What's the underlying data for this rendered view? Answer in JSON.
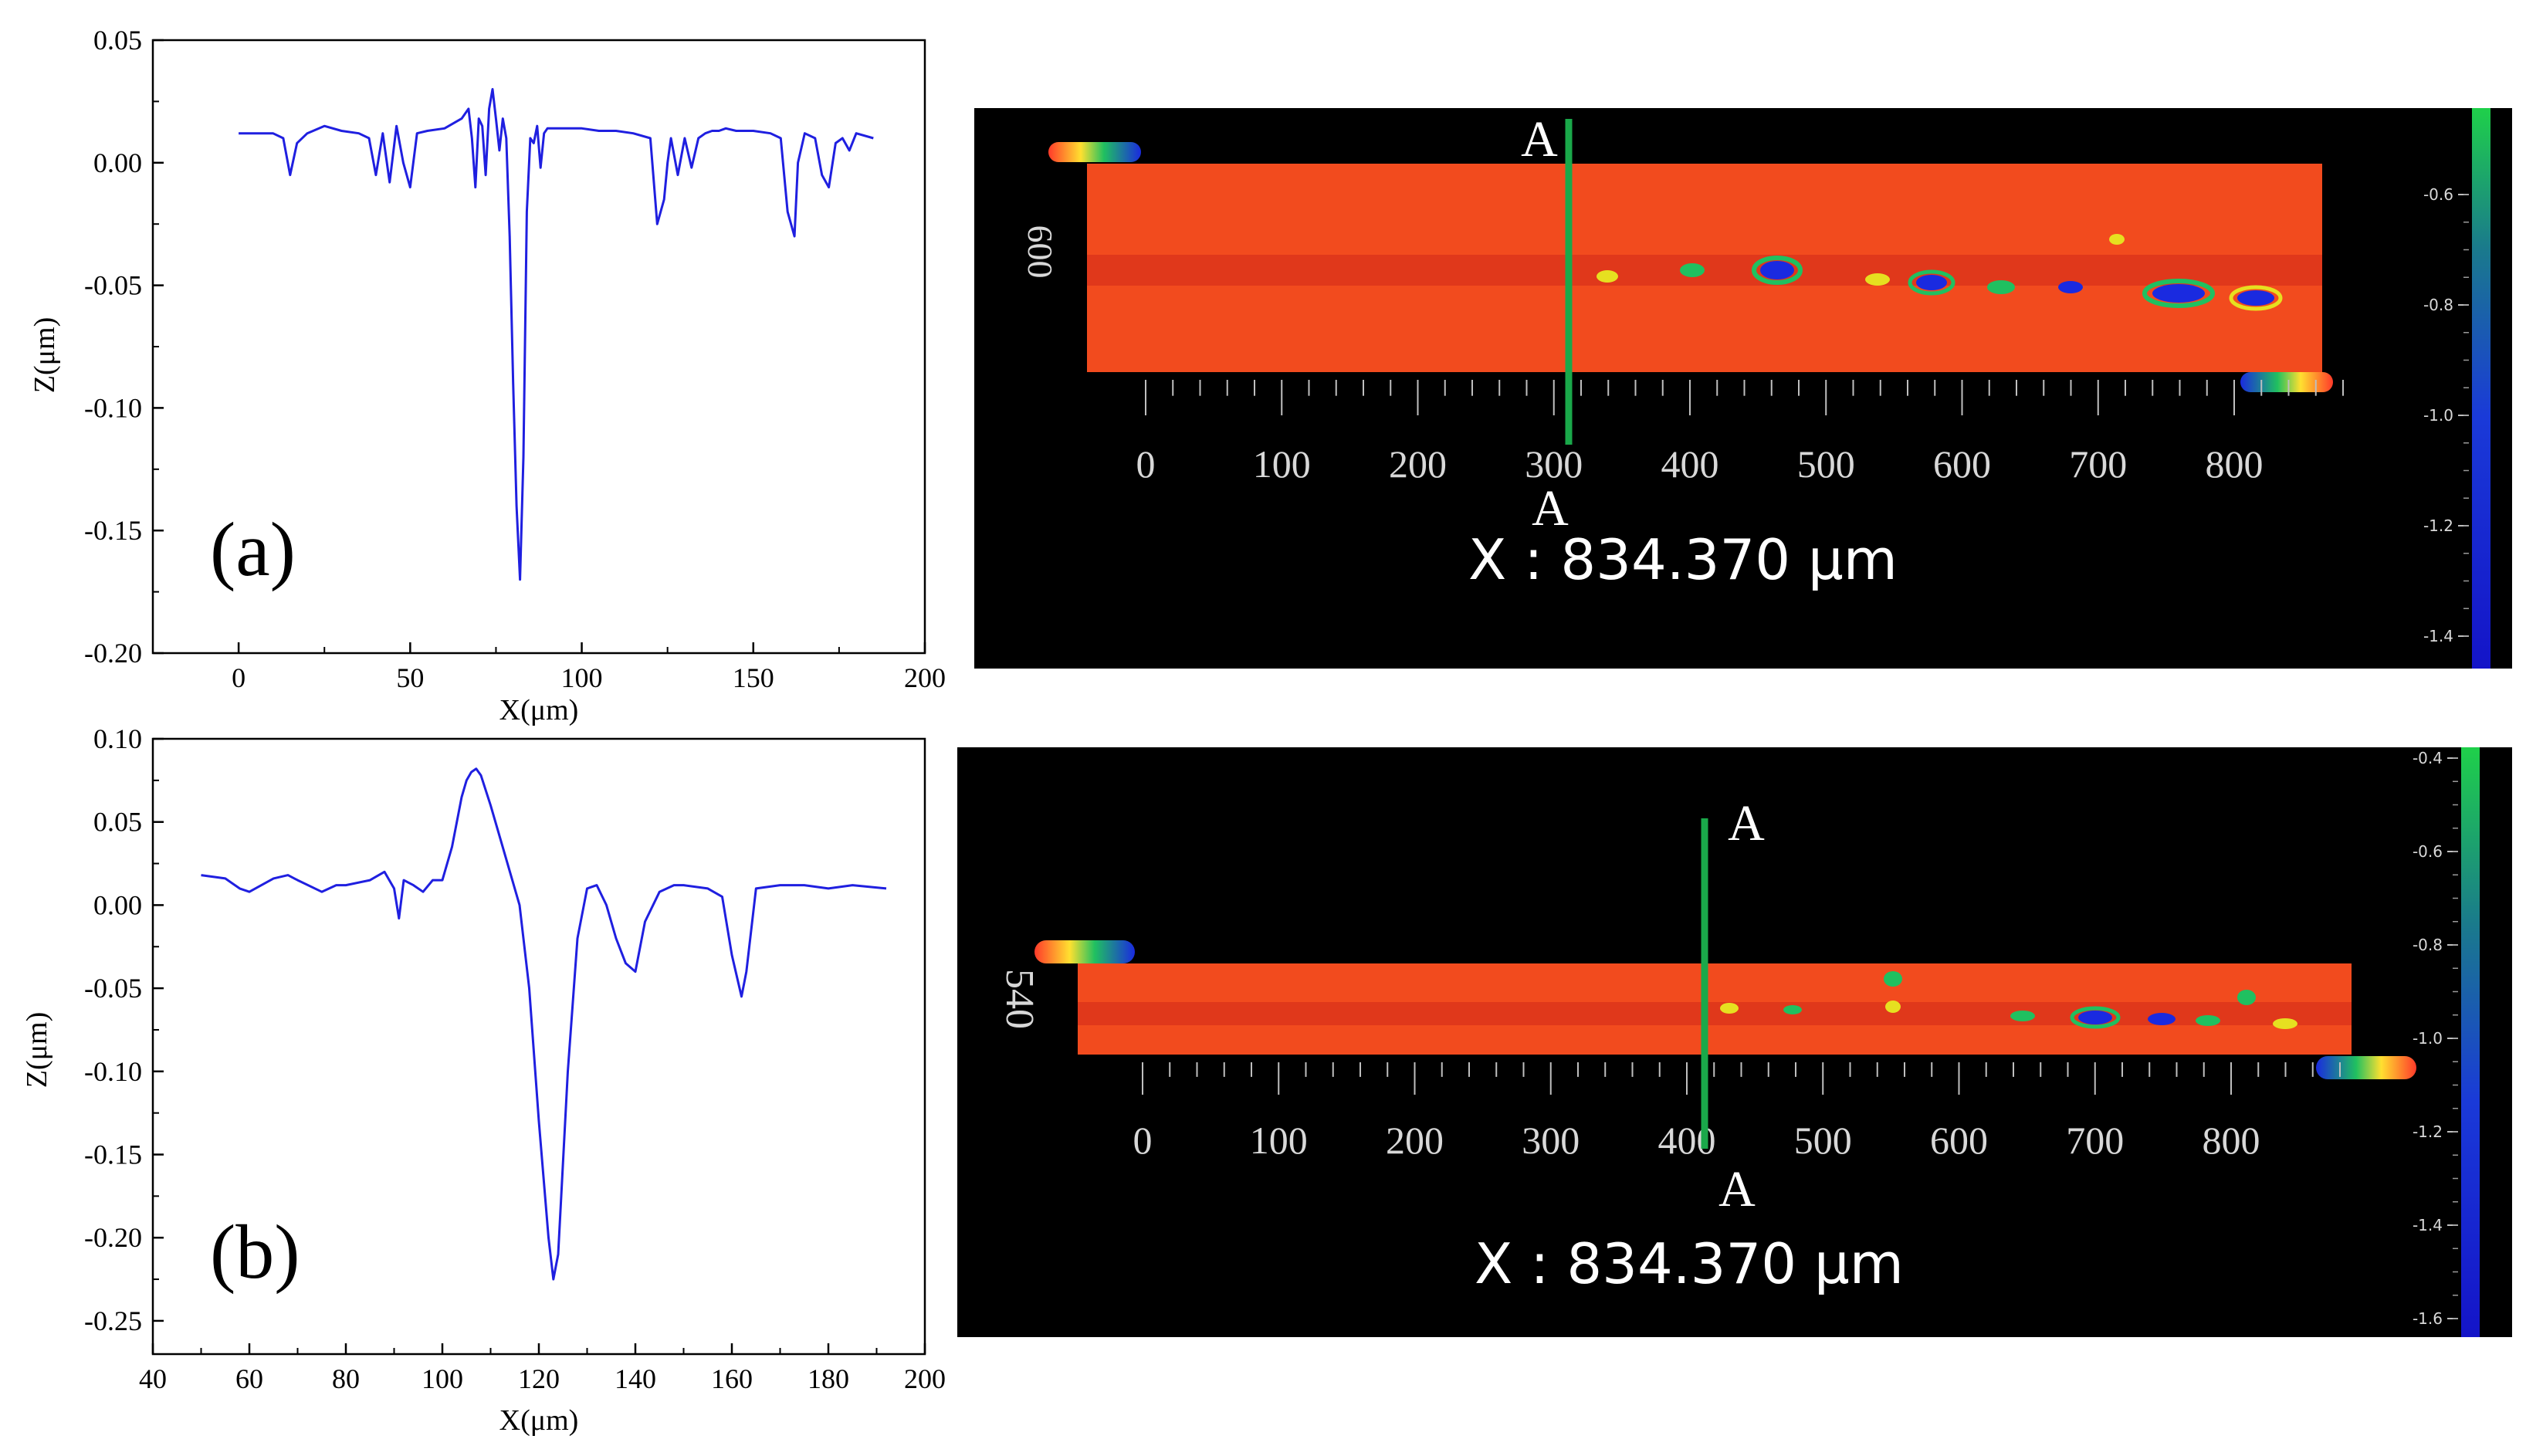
{
  "panels": {
    "a": {
      "label": "(a)",
      "scan_y_label": "600",
      "section_marker_top": "A",
      "section_marker_bottom": "A",
      "scan_x_ticks": [
        "0",
        "100",
        "200",
        "300",
        "400",
        "500",
        "600",
        "700",
        "800"
      ],
      "scan_readout": "X : 834.370 μm",
      "colorbar_ticks": [
        "-0.6",
        "-0.8",
        "-1.0",
        "-1.2",
        "-1.4"
      ]
    },
    "b": {
      "label": "(b)",
      "scan_y_label": "540",
      "section_marker_top": "A",
      "section_marker_bottom": "A",
      "scan_x_ticks": [
        "0",
        "100",
        "200",
        "300",
        "400",
        "500",
        "600",
        "700",
        "800"
      ],
      "scan_readout": "X : 834.370 μm",
      "colorbar_ticks": [
        "-0.4",
        "-0.6",
        "-0.8",
        "-1.0",
        "-1.2",
        "-1.4",
        "-1.6"
      ]
    }
  },
  "colors": {
    "profile_line": "#1f1fe0",
    "section_line": "#1aa84a",
    "scan_background": "#000000",
    "scan_surface": "#f0451c"
  },
  "chart_data": [
    {
      "id": "a",
      "type": "line",
      "xlabel": "X(μm)",
      "ylabel": "Z(μm)",
      "xlim": [
        -25,
        200
      ],
      "ylim": [
        -0.2,
        0.05
      ],
      "xticks": [
        0,
        50,
        100,
        150,
        200
      ],
      "yticks": [
        0.05,
        0.0,
        -0.05,
        -0.1,
        -0.15,
        -0.2
      ],
      "ytick_labels": [
        "0.05",
        "0.00",
        "-0.05",
        "-0.10",
        "-0.15",
        "-0.20"
      ],
      "grid": false,
      "series": [
        {
          "x": [
            0,
            10,
            13,
            15,
            17,
            20,
            25,
            30,
            35,
            38,
            40,
            42,
            44,
            46,
            48,
            50,
            52,
            55,
            60,
            65,
            67,
            68,
            69,
            70,
            71,
            72,
            73,
            74,
            75,
            76,
            77,
            78,
            79,
            80,
            81,
            82,
            83,
            84,
            85,
            86,
            87,
            88,
            89,
            90,
            95,
            100,
            105,
            110,
            115,
            120,
            122,
            124,
            125,
            126,
            128,
            130,
            132,
            134,
            136,
            138,
            140,
            142,
            145,
            150,
            155,
            158,
            160,
            162,
            163,
            165,
            168,
            170,
            172,
            174,
            176,
            178,
            180,
            185
          ],
          "y": [
            0.012,
            0.012,
            0.01,
            -0.005,
            0.008,
            0.012,
            0.015,
            0.013,
            0.012,
            0.01,
            -0.005,
            0.012,
            -0.008,
            0.015,
            0.0,
            -0.01,
            0.012,
            0.013,
            0.014,
            0.018,
            0.022,
            0.01,
            -0.01,
            0.018,
            0.015,
            -0.005,
            0.022,
            0.03,
            0.018,
            0.005,
            0.018,
            0.01,
            -0.03,
            -0.09,
            -0.14,
            -0.17,
            -0.12,
            -0.02,
            0.01,
            0.008,
            0.015,
            -0.002,
            0.012,
            0.014,
            0.014,
            0.014,
            0.013,
            0.013,
            0.012,
            0.01,
            -0.025,
            -0.015,
            0.0,
            0.01,
            -0.005,
            0.01,
            -0.002,
            0.01,
            0.012,
            0.013,
            0.013,
            0.014,
            0.013,
            0.013,
            0.012,
            0.01,
            -0.02,
            -0.03,
            0.0,
            0.012,
            0.01,
            -0.005,
            -0.01,
            0.008,
            0.01,
            0.005,
            0.012,
            0.01
          ]
        }
      ]
    },
    {
      "id": "b",
      "type": "line",
      "xlabel": "X(μm)",
      "ylabel": "Z(μm)",
      "xlim": [
        40,
        200
      ],
      "ylim": [
        -0.27,
        0.1
      ],
      "xticks": [
        40,
        60,
        80,
        100,
        120,
        140,
        160,
        180,
        200
      ],
      "yticks": [
        0.1,
        0.05,
        0.0,
        -0.05,
        -0.1,
        -0.15,
        -0.2,
        -0.25
      ],
      "ytick_labels": [
        "0.10",
        "0.05",
        "0.00",
        "-0.05",
        "-0.10",
        "-0.15",
        "-0.20",
        "-0.25"
      ],
      "grid": false,
      "series": [
        {
          "x": [
            50,
            55,
            58,
            60,
            65,
            68,
            70,
            75,
            78,
            80,
            85,
            88,
            90,
            91,
            92,
            94,
            96,
            98,
            100,
            102,
            104,
            105,
            106,
            107,
            108,
            110,
            112,
            114,
            116,
            118,
            120,
            122,
            123,
            124,
            126,
            128,
            130,
            132,
            134,
            136,
            138,
            140,
            142,
            145,
            148,
            150,
            155,
            158,
            160,
            162,
            163,
            165,
            170,
            175,
            180,
            185,
            192
          ],
          "y": [
            0.018,
            0.016,
            0.01,
            0.008,
            0.016,
            0.018,
            0.015,
            0.008,
            0.012,
            0.012,
            0.015,
            0.02,
            0.01,
            -0.008,
            0.015,
            0.012,
            0.008,
            0.015,
            0.015,
            0.035,
            0.065,
            0.075,
            0.08,
            0.082,
            0.078,
            0.06,
            0.04,
            0.02,
            0.0,
            -0.05,
            -0.13,
            -0.2,
            -0.225,
            -0.21,
            -0.1,
            -0.02,
            0.01,
            0.012,
            0.0,
            -0.02,
            -0.035,
            -0.04,
            -0.01,
            0.008,
            0.012,
            0.012,
            0.01,
            0.005,
            -0.03,
            -0.055,
            -0.04,
            0.01,
            0.012,
            0.012,
            0.01,
            0.012,
            0.01
          ]
        }
      ]
    }
  ]
}
